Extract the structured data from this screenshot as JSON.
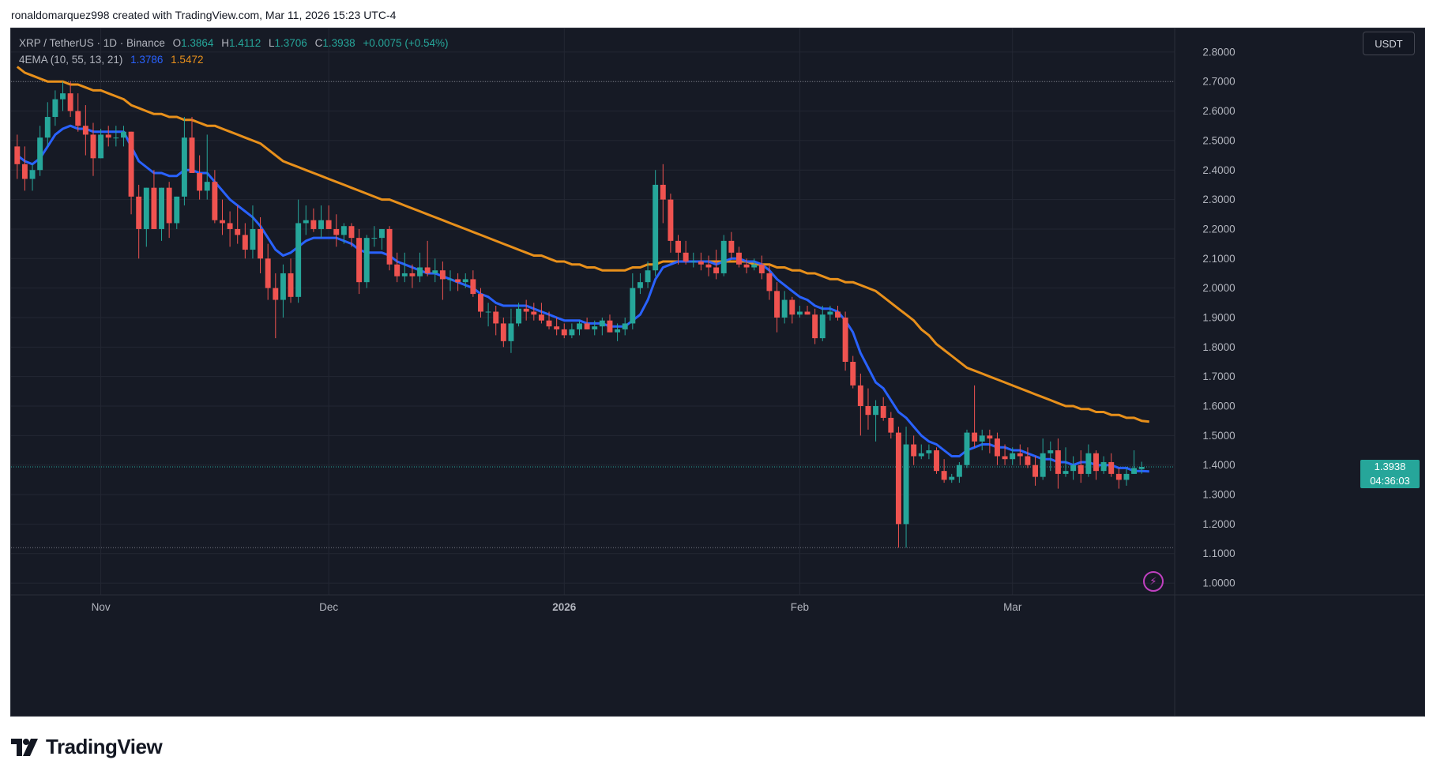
{
  "caption": "ronaldomarquez998 created with TradingView.com, Mar 11, 2026 15:23 UTC-4",
  "legend": {
    "symbol": "XRP / TetherUS · 1D · Binance",
    "o_label": "O",
    "o": "1.3864",
    "h_label": "H",
    "h": "1.4112",
    "l_label": "L",
    "l": "1.3706",
    "c_label": "C",
    "c": "1.3938",
    "change": "+0.0075 (+0.54%)",
    "indicator": "4EMA (10, 55, 13, 21)",
    "ema10_value": "1.3786",
    "ema55_value": "1.5472"
  },
  "currency": "USDT",
  "last_price": {
    "price": "1.3938",
    "countdown": "04:36:03"
  },
  "logo_text": "TradingView",
  "colors": {
    "background": "#161a25",
    "up": "#26a69a",
    "down": "#ef5350",
    "ema_fast": "#2962ff",
    "ema_slow": "#e8901b",
    "grid": "#232733",
    "text": "#b2b5be"
  },
  "chart_data": {
    "type": "candlestick",
    "title": "XRP / TetherUS · 1D · Binance",
    "ylim": [
      0.96,
      2.88
    ],
    "y_ticks": [
      "2.8000",
      "2.7000",
      "2.6000",
      "2.5000",
      "2.4000",
      "2.3000",
      "2.2000",
      "2.1000",
      "2.0000",
      "1.9000",
      "1.8000",
      "1.7000",
      "1.6000",
      "1.5000",
      "1.4000",
      "1.3000",
      "1.2000",
      "1.1000",
      "1.0000"
    ],
    "x_labels": [
      {
        "label": "Nov",
        "index": 11
      },
      {
        "label": "Dec",
        "index": 41
      },
      {
        "label": "2026",
        "index": 72
      },
      {
        "label": "Feb",
        "index": 103
      },
      {
        "label": "Mar",
        "index": 131
      }
    ],
    "reference_lines": [
      2.7,
      1.12
    ],
    "candles": [
      [
        2.48,
        2.52,
        2.37,
        2.42
      ],
      [
        2.42,
        2.48,
        2.33,
        2.37
      ],
      [
        2.37,
        2.42,
        2.33,
        2.4
      ],
      [
        2.4,
        2.55,
        2.38,
        2.51
      ],
      [
        2.51,
        2.63,
        2.48,
        2.58
      ],
      [
        2.58,
        2.67,
        2.55,
        2.64
      ],
      [
        2.64,
        2.7,
        2.6,
        2.66
      ],
      [
        2.66,
        2.7,
        2.58,
        2.6
      ],
      [
        2.6,
        2.66,
        2.53,
        2.55
      ],
      [
        2.55,
        2.62,
        2.45,
        2.52
      ],
      [
        2.52,
        2.56,
        2.38,
        2.44
      ],
      [
        2.44,
        2.54,
        2.44,
        2.52
      ],
      [
        2.52,
        2.55,
        2.48,
        2.51
      ],
      [
        2.51,
        2.55,
        2.48,
        2.51
      ],
      [
        2.51,
        2.55,
        2.48,
        2.53
      ],
      [
        2.53,
        2.53,
        2.25,
        2.31
      ],
      [
        2.31,
        2.35,
        2.1,
        2.2
      ],
      [
        2.2,
        2.34,
        2.14,
        2.34
      ],
      [
        2.34,
        2.4,
        2.2,
        2.2
      ],
      [
        2.2,
        2.34,
        2.16,
        2.34
      ],
      [
        2.34,
        2.36,
        2.17,
        2.22
      ],
      [
        2.22,
        2.31,
        2.2,
        2.31
      ],
      [
        2.31,
        2.58,
        2.28,
        2.51
      ],
      [
        2.51,
        2.58,
        2.4,
        2.39
      ],
      [
        2.39,
        2.45,
        2.3,
        2.33
      ],
      [
        2.33,
        2.52,
        2.3,
        2.36
      ],
      [
        2.36,
        2.4,
        2.22,
        2.23
      ],
      [
        2.23,
        2.3,
        2.18,
        2.22
      ],
      [
        2.22,
        2.26,
        2.14,
        2.2
      ],
      [
        2.2,
        2.28,
        2.15,
        2.18
      ],
      [
        2.18,
        2.22,
        2.1,
        2.13
      ],
      [
        2.13,
        2.28,
        2.1,
        2.2
      ],
      [
        2.2,
        2.24,
        2.05,
        2.1
      ],
      [
        2.1,
        2.15,
        1.96,
        2.0
      ],
      [
        2.0,
        2.05,
        1.83,
        1.96
      ],
      [
        1.96,
        2.08,
        1.9,
        2.05
      ],
      [
        2.05,
        2.1,
        1.95,
        1.97
      ],
      [
        1.97,
        2.3,
        1.95,
        2.22
      ],
      [
        2.22,
        2.28,
        2.18,
        2.23
      ],
      [
        2.23,
        2.27,
        2.19,
        2.2
      ],
      [
        2.2,
        2.28,
        2.17,
        2.23
      ],
      [
        2.23,
        2.28,
        2.2,
        2.2
      ],
      [
        2.2,
        2.25,
        2.14,
        2.18
      ],
      [
        2.18,
        2.22,
        2.15,
        2.21
      ],
      [
        2.21,
        2.22,
        2.14,
        2.17
      ],
      [
        2.17,
        2.2,
        1.98,
        2.02
      ],
      [
        2.02,
        2.18,
        2.0,
        2.17
      ],
      [
        2.17,
        2.21,
        2.14,
        2.17
      ],
      [
        2.17,
        2.2,
        2.13,
        2.2
      ],
      [
        2.2,
        2.21,
        2.06,
        2.08
      ],
      [
        2.08,
        2.12,
        2.02,
        2.04
      ],
      [
        2.04,
        2.12,
        2.02,
        2.05
      ],
      [
        2.05,
        2.08,
        2.0,
        2.04
      ],
      [
        2.04,
        2.12,
        2.02,
        2.07
      ],
      [
        2.07,
        2.16,
        2.04,
        2.05
      ],
      [
        2.05,
        2.1,
        2.02,
        2.06
      ],
      [
        2.06,
        2.09,
        1.96,
        2.03
      ],
      [
        2.03,
        2.06,
        1.99,
        2.03
      ],
      [
        2.03,
        2.05,
        1.99,
        2.02
      ],
      [
        2.02,
        2.05,
        2.0,
        2.03
      ],
      [
        2.03,
        2.06,
        1.97,
        1.98
      ],
      [
        1.98,
        2.0,
        1.9,
        1.92
      ],
      [
        1.92,
        1.95,
        1.87,
        1.92
      ],
      [
        1.92,
        1.94,
        1.84,
        1.88
      ],
      [
        1.88,
        1.9,
        1.8,
        1.82
      ],
      [
        1.82,
        1.93,
        1.78,
        1.88
      ],
      [
        1.88,
        1.95,
        1.87,
        1.93
      ],
      [
        1.93,
        1.96,
        1.89,
        1.92
      ],
      [
        1.92,
        1.95,
        1.89,
        1.91
      ],
      [
        1.91,
        1.95,
        1.88,
        1.89
      ],
      [
        1.89,
        1.92,
        1.86,
        1.87
      ],
      [
        1.87,
        1.9,
        1.84,
        1.86
      ],
      [
        1.86,
        1.88,
        1.83,
        1.84
      ],
      [
        1.84,
        1.88,
        1.83,
        1.86
      ],
      [
        1.86,
        1.89,
        1.84,
        1.88
      ],
      [
        1.88,
        1.9,
        1.86,
        1.86
      ],
      [
        1.86,
        1.89,
        1.84,
        1.87
      ],
      [
        1.87,
        1.9,
        1.84,
        1.89
      ],
      [
        1.89,
        1.91,
        1.85,
        1.85
      ],
      [
        1.85,
        1.88,
        1.82,
        1.86
      ],
      [
        1.86,
        1.9,
        1.84,
        1.88
      ],
      [
        1.88,
        2.05,
        1.86,
        2.0
      ],
      [
        2.0,
        2.05,
        1.98,
        2.02
      ],
      [
        2.02,
        2.09,
        2.0,
        2.06
      ],
      [
        2.06,
        2.4,
        2.04,
        2.35
      ],
      [
        2.35,
        2.42,
        2.22,
        2.3
      ],
      [
        2.3,
        2.32,
        2.12,
        2.16
      ],
      [
        2.16,
        2.18,
        2.08,
        2.12
      ],
      [
        2.12,
        2.16,
        2.08,
        2.09
      ],
      [
        2.09,
        2.12,
        2.07,
        2.09
      ],
      [
        2.09,
        2.12,
        2.06,
        2.08
      ],
      [
        2.08,
        2.11,
        2.04,
        2.07
      ],
      [
        2.07,
        2.13,
        2.03,
        2.05
      ],
      [
        2.05,
        2.18,
        2.04,
        2.16
      ],
      [
        2.16,
        2.19,
        2.1,
        2.12
      ],
      [
        2.12,
        2.14,
        2.07,
        2.08
      ],
      [
        2.08,
        2.1,
        2.05,
        2.07
      ],
      [
        2.07,
        2.1,
        2.06,
        2.08
      ],
      [
        2.08,
        2.11,
        2.03,
        2.05
      ],
      [
        2.05,
        2.08,
        1.96,
        1.99
      ],
      [
        1.99,
        2.02,
        1.85,
        1.9
      ],
      [
        1.9,
        1.99,
        1.88,
        1.96
      ],
      [
        1.96,
        1.97,
        1.88,
        1.91
      ],
      [
        1.91,
        1.94,
        1.9,
        1.92
      ],
      [
        1.92,
        1.94,
        1.91,
        1.91
      ],
      [
        1.91,
        1.93,
        1.81,
        1.83
      ],
      [
        1.83,
        1.94,
        1.82,
        1.91
      ],
      [
        1.91,
        1.94,
        1.89,
        1.92
      ],
      [
        1.92,
        1.94,
        1.89,
        1.9
      ],
      [
        1.9,
        1.92,
        1.72,
        1.75
      ],
      [
        1.75,
        1.77,
        1.66,
        1.67
      ],
      [
        1.67,
        1.71,
        1.5,
        1.6
      ],
      [
        1.6,
        1.66,
        1.52,
        1.57
      ],
      [
        1.57,
        1.62,
        1.48,
        1.6
      ],
      [
        1.6,
        1.63,
        1.55,
        1.56
      ],
      [
        1.56,
        1.58,
        1.49,
        1.51
      ],
      [
        1.51,
        1.53,
        1.12,
        1.2
      ],
      [
        1.2,
        1.53,
        1.12,
        1.47
      ],
      [
        1.47,
        1.5,
        1.4,
        1.43
      ],
      [
        1.43,
        1.47,
        1.42,
        1.44
      ],
      [
        1.44,
        1.47,
        1.42,
        1.45
      ],
      [
        1.45,
        1.46,
        1.37,
        1.38
      ],
      [
        1.38,
        1.42,
        1.34,
        1.35
      ],
      [
        1.35,
        1.37,
        1.34,
        1.36
      ],
      [
        1.36,
        1.41,
        1.34,
        1.4
      ],
      [
        1.4,
        1.52,
        1.39,
        1.51
      ],
      [
        1.51,
        1.67,
        1.46,
        1.48
      ],
      [
        1.48,
        1.52,
        1.45,
        1.5
      ],
      [
        1.5,
        1.52,
        1.44,
        1.49
      ],
      [
        1.49,
        1.51,
        1.4,
        1.43
      ],
      [
        1.43,
        1.47,
        1.4,
        1.42
      ],
      [
        1.42,
        1.46,
        1.4,
        1.44
      ],
      [
        1.44,
        1.47,
        1.4,
        1.43
      ],
      [
        1.43,
        1.46,
        1.39,
        1.4
      ],
      [
        1.4,
        1.43,
        1.33,
        1.36
      ],
      [
        1.36,
        1.49,
        1.35,
        1.44
      ],
      [
        1.44,
        1.48,
        1.38,
        1.45
      ],
      [
        1.45,
        1.49,
        1.32,
        1.37
      ],
      [
        1.37,
        1.46,
        1.36,
        1.38
      ],
      [
        1.38,
        1.43,
        1.35,
        1.4
      ],
      [
        1.4,
        1.45,
        1.34,
        1.37
      ],
      [
        1.37,
        1.47,
        1.36,
        1.44
      ],
      [
        1.44,
        1.45,
        1.35,
        1.38
      ],
      [
        1.38,
        1.43,
        1.37,
        1.41
      ],
      [
        1.41,
        1.44,
        1.36,
        1.37
      ],
      [
        1.37,
        1.39,
        1.32,
        1.35
      ],
      [
        1.35,
        1.39,
        1.33,
        1.37
      ],
      [
        1.37,
        1.45,
        1.37,
        1.39
      ],
      [
        1.3864,
        1.4112,
        1.3706,
        1.3938
      ]
    ],
    "series": [
      {
        "name": "4EMA (10, 55, 13, 21)",
        "values": [
          2.45,
          2.43,
          2.42,
          2.44,
          2.48,
          2.52,
          2.54,
          2.55,
          2.54,
          2.54,
          2.53,
          2.53,
          2.53,
          2.53,
          2.53,
          2.48,
          2.43,
          2.41,
          2.39,
          2.39,
          2.38,
          2.38,
          2.4,
          2.4,
          2.39,
          2.39,
          2.36,
          2.33,
          2.3,
          2.28,
          2.26,
          2.24,
          2.21,
          2.17,
          2.13,
          2.11,
          2.12,
          2.14,
          2.16,
          2.17,
          2.17,
          2.17,
          2.17,
          2.16,
          2.15,
          2.13,
          2.12,
          2.12,
          2.12,
          2.11,
          2.09,
          2.08,
          2.07,
          2.06,
          2.05,
          2.05,
          2.04,
          2.03,
          2.02,
          2.01,
          2.0,
          1.98,
          1.97,
          1.95,
          1.94,
          1.94,
          1.94,
          1.94,
          1.93,
          1.92,
          1.91,
          1.9,
          1.89,
          1.89,
          1.89,
          1.88,
          1.88,
          1.88,
          1.87,
          1.87,
          1.87,
          1.89,
          1.91,
          1.96,
          2.03,
          2.07,
          2.08,
          2.09,
          2.09,
          2.09,
          2.09,
          2.09,
          2.08,
          2.09,
          2.1,
          2.1,
          2.09,
          2.09,
          2.08,
          2.06,
          2.03,
          2.01,
          1.99,
          1.97,
          1.96,
          1.94,
          1.93,
          1.93,
          1.92,
          1.89,
          1.85,
          1.78,
          1.73,
          1.68,
          1.66,
          1.62,
          1.58,
          1.56,
          1.53,
          1.5,
          1.48,
          1.47,
          1.45,
          1.43,
          1.43,
          1.45,
          1.46,
          1.47,
          1.47,
          1.46,
          1.46,
          1.45,
          1.45,
          1.44,
          1.43,
          1.42,
          1.42,
          1.41,
          1.41,
          1.4,
          1.41,
          1.41,
          1.4,
          1.4,
          1.4,
          1.39,
          1.39,
          1.38,
          1.38,
          1.3786
        ]
      },
      {
        "name": "4EMA (10, 55, 13, 21)",
        "values": [
          2.75,
          2.73,
          2.72,
          2.71,
          2.7,
          2.7,
          2.7,
          2.69,
          2.69,
          2.68,
          2.67,
          2.67,
          2.66,
          2.65,
          2.64,
          2.62,
          2.61,
          2.6,
          2.59,
          2.59,
          2.58,
          2.58,
          2.57,
          2.57,
          2.56,
          2.55,
          2.55,
          2.54,
          2.53,
          2.52,
          2.51,
          2.5,
          2.49,
          2.47,
          2.45,
          2.43,
          2.42,
          2.41,
          2.4,
          2.39,
          2.38,
          2.37,
          2.36,
          2.35,
          2.34,
          2.33,
          2.32,
          2.31,
          2.3,
          2.3,
          2.29,
          2.28,
          2.27,
          2.26,
          2.25,
          2.24,
          2.23,
          2.22,
          2.21,
          2.2,
          2.19,
          2.18,
          2.17,
          2.16,
          2.15,
          2.14,
          2.13,
          2.12,
          2.11,
          2.11,
          2.1,
          2.09,
          2.09,
          2.08,
          2.08,
          2.07,
          2.07,
          2.06,
          2.06,
          2.06,
          2.06,
          2.07,
          2.07,
          2.08,
          2.08,
          2.09,
          2.09,
          2.09,
          2.09,
          2.09,
          2.09,
          2.09,
          2.09,
          2.09,
          2.09,
          2.09,
          2.09,
          2.08,
          2.08,
          2.08,
          2.07,
          2.07,
          2.06,
          2.06,
          2.05,
          2.05,
          2.04,
          2.03,
          2.03,
          2.02,
          2.02,
          2.01,
          2.0,
          1.99,
          1.97,
          1.95,
          1.93,
          1.91,
          1.89,
          1.86,
          1.84,
          1.81,
          1.79,
          1.77,
          1.75,
          1.73,
          1.72,
          1.71,
          1.7,
          1.69,
          1.68,
          1.67,
          1.66,
          1.65,
          1.64,
          1.63,
          1.62,
          1.61,
          1.6,
          1.6,
          1.59,
          1.59,
          1.58,
          1.58,
          1.57,
          1.57,
          1.56,
          1.56,
          1.55,
          1.5472
        ]
      }
    ]
  }
}
